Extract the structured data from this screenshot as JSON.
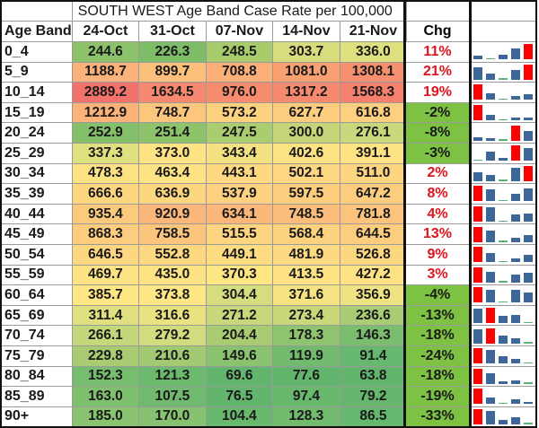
{
  "title": "SOUTH WEST Age Band Case Rate per 100,000",
  "headers": {
    "age_band": "Age Band",
    "dates": [
      "24-Oct",
      "31-Oct",
      "07-Nov",
      "14-Nov",
      "21-Nov"
    ],
    "chg": "Chg"
  },
  "colors": {
    "pos_change_text": "#e0141e",
    "neg_change_bg": "#7dc242",
    "spark_max": "#ff0000",
    "spark_normal": "#3d6699",
    "spark_min": "#5ab47a"
  },
  "rows": [
    {
      "band": "0_4",
      "values": [
        "244.6",
        "226.3",
        "248.5",
        "303.7",
        "336.0"
      ],
      "chg": "11%",
      "bg": [
        "#8cc36a",
        "#7ebd68",
        "#a8cc6c",
        "#d7dc7c",
        "#dee07e"
      ]
    },
    {
      "band": "5_9",
      "values": [
        "1188.7",
        "899.7",
        "708.8",
        "1081.0",
        "1308.1"
      ],
      "chg": "21%",
      "bg": [
        "#fbb27a",
        "#fcc07c",
        "#fbb07a",
        "#f8a072",
        "#f69170"
      ]
    },
    {
      "band": "10_14",
      "values": [
        "2889.2",
        "1634.5",
        "976.0",
        "1317.2",
        "1568.3"
      ],
      "chg": "19%",
      "bg": [
        "#f2736c",
        "#f6886f",
        "#f78c6f",
        "#f68a6e",
        "#f5806d"
      ]
    },
    {
      "band": "15_19",
      "values": [
        "1212.9",
        "748.7",
        "573.2",
        "627.7",
        "616.8"
      ],
      "chg": "-2%",
      "bg": [
        "#fbb37a",
        "#fcc67d",
        "#fdd27f",
        "#fdcd7f",
        "#fdcf7f"
      ]
    },
    {
      "band": "20_24",
      "values": [
        "252.9",
        "251.4",
        "247.5",
        "300.0",
        "276.1"
      ],
      "chg": "-8%",
      "bg": [
        "#84c06a",
        "#8dc36b",
        "#aacd6f",
        "#c4d57a",
        "#cad77c"
      ]
    },
    {
      "band": "25_29",
      "values": [
        "337.3",
        "373.0",
        "343.4",
        "402.6",
        "391.1"
      ],
      "chg": "-3%",
      "bg": [
        "#dfe080",
        "#fde383",
        "#f4e182",
        "#fde283",
        "#fde383"
      ]
    },
    {
      "band": "30_34",
      "values": [
        "478.3",
        "463.4",
        "443.1",
        "502.1",
        "511.0"
      ],
      "chg": "2%",
      "bg": [
        "#fde283",
        "#fde383",
        "#fed982",
        "#fdd781",
        "#fdd580"
      ]
    },
    {
      "band": "35_39",
      "values": [
        "666.6",
        "636.9",
        "537.9",
        "597.5",
        "647.2"
      ],
      "chg": "8%",
      "bg": [
        "#fdd680",
        "#fdd780",
        "#fdd17f",
        "#fdcd7e",
        "#fdcd7f"
      ]
    },
    {
      "band": "40_44",
      "values": [
        "935.4",
        "920.9",
        "634.1",
        "748.5",
        "781.8"
      ],
      "chg": "4%",
      "bg": [
        "#fcca7d",
        "#fbb67b",
        "#fbb67a",
        "#fcbd7c",
        "#fcc37c"
      ]
    },
    {
      "band": "45_49",
      "values": [
        "868.3",
        "758.5",
        "515.5",
        "568.4",
        "644.5"
      ],
      "chg": "13%",
      "bg": [
        "#fccd7e",
        "#fcc57d",
        "#fdd47f",
        "#fdd27f",
        "#fdcd7f"
      ]
    },
    {
      "band": "50_54",
      "values": [
        "646.5",
        "552.8",
        "449.1",
        "481.9",
        "526.8"
      ],
      "chg": "9%",
      "bg": [
        "#fdd680",
        "#fdd881",
        "#fedd82",
        "#fdd982",
        "#fdd680"
      ]
    },
    {
      "band": "55_59",
      "values": [
        "469.7",
        "435.0",
        "370.3",
        "413.5",
        "427.2"
      ],
      "chg": "3%",
      "bg": [
        "#fde383",
        "#fde383",
        "#fee683",
        "#fee283",
        "#fee283"
      ]
    },
    {
      "band": "60_64",
      "values": [
        "385.7",
        "373.8",
        "304.4",
        "371.6",
        "356.9"
      ],
      "chg": "-4%",
      "bg": [
        "#fde683",
        "#fde683",
        "#d6dd7e",
        "#f5e382",
        "#eee282"
      ]
    },
    {
      "band": "65_69",
      "values": [
        "311.4",
        "316.6",
        "271.2",
        "273.4",
        "236.6"
      ],
      "chg": "-13%",
      "bg": [
        "#e1e080",
        "#e9e281",
        "#c8d77b",
        "#c8d87a",
        "#a9cc74"
      ]
    },
    {
      "band": "70_74",
      "values": [
        "266.1",
        "279.2",
        "204.4",
        "178.3",
        "146.3"
      ],
      "chg": "-18%",
      "bg": [
        "#c4d77a",
        "#d2db7e",
        "#a9cc73",
        "#8ec470",
        "#7bbd6f"
      ]
    },
    {
      "band": "75_79",
      "values": [
        "229.8",
        "210.6",
        "149.6",
        "119.9",
        "91.4"
      ],
      "chg": "-24%",
      "bg": [
        "#a9cc73",
        "#a1ca72",
        "#89c36f",
        "#72bb6e",
        "#66b86e"
      ]
    },
    {
      "band": "80_84",
      "values": [
        "152.3",
        "121.3",
        "69.6",
        "77.6",
        "63.8"
      ],
      "chg": "-18%",
      "bg": [
        "#76bd6f",
        "#6cba6e",
        "#63b56d",
        "#63b56d",
        "#63b56d"
      ]
    },
    {
      "band": "85_89",
      "values": [
        "163.0",
        "107.5",
        "76.5",
        "97.4",
        "79.2"
      ],
      "chg": "-19%",
      "bg": [
        "#7fc06f",
        "#6fba6e",
        "#63b56d",
        "#68b86e",
        "#66b76d"
      ]
    },
    {
      "band": "90+",
      "values": [
        "185.0",
        "170.0",
        "104.4",
        "128.3",
        "86.5"
      ],
      "chg": "-33%",
      "bg": [
        "#8ac470",
        "#86c26f",
        "#68b86e",
        "#71bb6e",
        "#66b86e"
      ]
    }
  ]
}
